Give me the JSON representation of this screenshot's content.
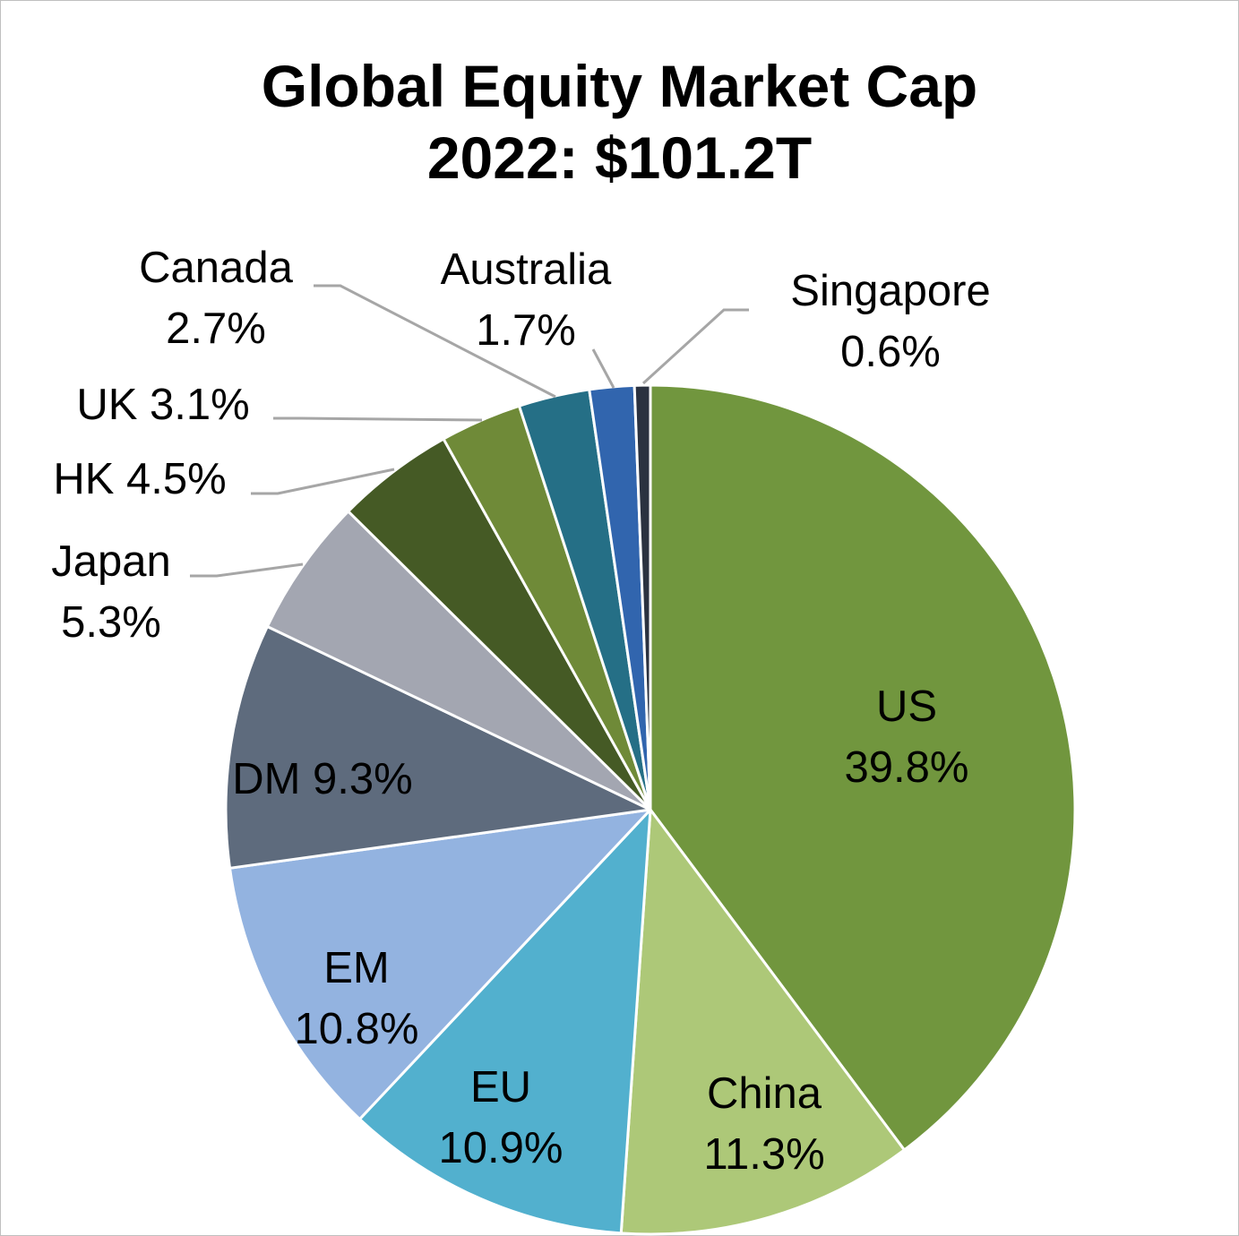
{
  "chart_data": {
    "type": "pie",
    "title": [
      "Global Equity Market Cap",
      "2022: $101.2T"
    ],
    "slices": [
      {
        "label": "US",
        "value": 39.8,
        "value_label": "39.8%",
        "color": "#71963E"
      },
      {
        "label": "China",
        "value": 11.3,
        "value_label": "11.3%",
        "color": "#ADC878"
      },
      {
        "label": "EU",
        "value": 10.9,
        "value_label": "10.9%",
        "color": "#52B0CE"
      },
      {
        "label": "EM",
        "value": 10.8,
        "value_label": "10.8%",
        "color": "#93B3E0"
      },
      {
        "label": "DM",
        "value": 9.3,
        "value_label": "9.3%",
        "color": "#5E6B7D"
      },
      {
        "label": "Japan",
        "value": 5.3,
        "value_label": "5.3%",
        "color": "#A3A6B1"
      },
      {
        "label": "HK",
        "value": 4.5,
        "value_label": "4.5%",
        "color": "#455A25"
      },
      {
        "label": "UK",
        "value": 3.1,
        "value_label": "3.1%",
        "color": "#6F8A38"
      },
      {
        "label": "Canada",
        "value": 2.7,
        "value_label": "2.7%",
        "color": "#256F86"
      },
      {
        "label": "Australia",
        "value": 1.7,
        "value_label": "1.7%",
        "color": "#3165AE"
      },
      {
        "label": "Singapore",
        "value": 0.6,
        "value_label": "0.6%",
        "color": "#2B3240"
      }
    ],
    "legend": "none",
    "label_style": "data labels with leader lines"
  }
}
